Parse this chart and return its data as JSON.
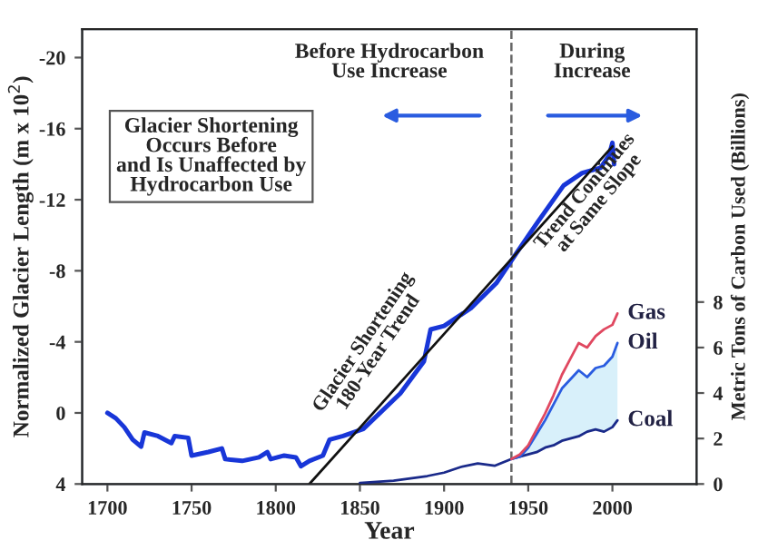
{
  "chart_data": {
    "type": "line",
    "xlabel": "Year",
    "ylabel": "Normalized Glacier Length (m x 10$^{2}$)",
    "y2label": "Metric Tons of Carbon Used (Billions)",
    "xlim": [
      1685,
      2050
    ],
    "xticks": [
      1700,
      1750,
      1800,
      1850,
      1900,
      1950,
      2000
    ],
    "ylim": [
      4,
      -21.6
    ],
    "yticks": [
      -20,
      -16,
      -12,
      -8,
      -4,
      0,
      4
    ],
    "y2lim": [
      0,
      20
    ],
    "y2ticks": [
      0,
      2,
      4,
      6,
      8
    ],
    "legend": false,
    "grid": false,
    "marker": "none",
    "line_style": "solid",
    "series": [
      {
        "color": "#1836d8",
        "x": [
          1700,
          1705,
          1710,
          1715,
          1720,
          1722,
          1730,
          1738,
          1740,
          1748,
          1750,
          1760,
          1768,
          1770,
          1780,
          1790,
          1795,
          1797,
          1805,
          1812,
          1815,
          1820,
          1828,
          1832,
          1840,
          1852,
          1874,
          1888,
          1892,
          1900,
          1916,
          1931,
          1943,
          1956,
          1971,
          1982,
          1993,
          1998,
          2000,
          2001
        ],
        "values": [
          0,
          0.3,
          0.8,
          1.5,
          1.9,
          1.1,
          1.3,
          1.7,
          1.3,
          1.4,
          2.4,
          2.2,
          2.0,
          2.6,
          2.7,
          2.5,
          2.2,
          2.6,
          2.4,
          2.5,
          3.0,
          2.7,
          2.4,
          1.5,
          1.3,
          0.9,
          -1.1,
          -2.9,
          -4.7,
          -4.9,
          -5.9,
          -7.3,
          -9.0,
          -10.8,
          -12.8,
          -13.5,
          -13.8,
          -14.5,
          -15.2,
          -14.0
        ]
      },
      {
        "color": "#111111",
        "x": [
          1820,
          2000
        ],
        "values": [
          4,
          -15
        ]
      },
      {
        "name": "Coal",
        "color": "#1a2a8a",
        "axis": "y2",
        "x": [
          1850,
          1860,
          1870,
          1880,
          1890,
          1900,
          1910,
          1920,
          1930,
          1940,
          1945,
          1950,
          1955,
          1960,
          1965,
          1970,
          1975,
          1980,
          1985,
          1990,
          1995,
          2000,
          2003
        ],
        "values": [
          0.05,
          0.1,
          0.15,
          0.25,
          0.35,
          0.5,
          0.75,
          0.9,
          0.8,
          1.1,
          1.2,
          1.3,
          1.4,
          1.6,
          1.7,
          1.9,
          2.0,
          2.1,
          2.3,
          2.4,
          2.3,
          2.5,
          2.8
        ]
      },
      {
        "name": "Oil",
        "color": "#2a5ce0",
        "axis": "y2",
        "x": [
          1940,
          1945,
          1950,
          1955,
          1960,
          1965,
          1970,
          1975,
          1980,
          1985,
          1990,
          1995,
          2000,
          2003
        ],
        "values": [
          1.1,
          1.2,
          1.6,
          2.2,
          2.8,
          3.5,
          4.2,
          4.6,
          5.0,
          4.7,
          5.1,
          5.2,
          5.6,
          6.2
        ],
        "lower": [
          1.1,
          1.2,
          1.3,
          1.4,
          1.6,
          1.7,
          1.9,
          2.0,
          2.1,
          2.3,
          2.4,
          2.3,
          2.5,
          2.8
        ],
        "upper": [
          1.1,
          1.2,
          1.6,
          2.2,
          2.8,
          3.5,
          4.2,
          4.6,
          5.0,
          4.7,
          5.1,
          5.2,
          5.6,
          6.2
        ]
      },
      {
        "name": "Gas",
        "color": "#e04860",
        "axis": "y2",
        "x": [
          1940,
          1945,
          1950,
          1955,
          1960,
          1965,
          1970,
          1975,
          1980,
          1985,
          1990,
          1995,
          2000,
          2003
        ],
        "values": [
          1.1,
          1.3,
          1.7,
          2.4,
          3.1,
          3.9,
          4.8,
          5.5,
          6.2,
          6.0,
          6.5,
          6.8,
          7.0,
          7.5
        ]
      }
    ],
    "ref_lines": [
      {
        "axis": "x",
        "value": 1940,
        "color": "#666666",
        "line_style": "dashed"
      }
    ],
    "annotations": [
      "Before Hydrocarbon\nUse Increase",
      "During\nIncrease",
      "Glacier Shortening\nOccurs Before\nand Is Unaffected by\nHydrocarbon Use",
      "Glacier Shortening\n180-Year Trend",
      "Trend Continues\nat Same Slope"
    ]
  }
}
